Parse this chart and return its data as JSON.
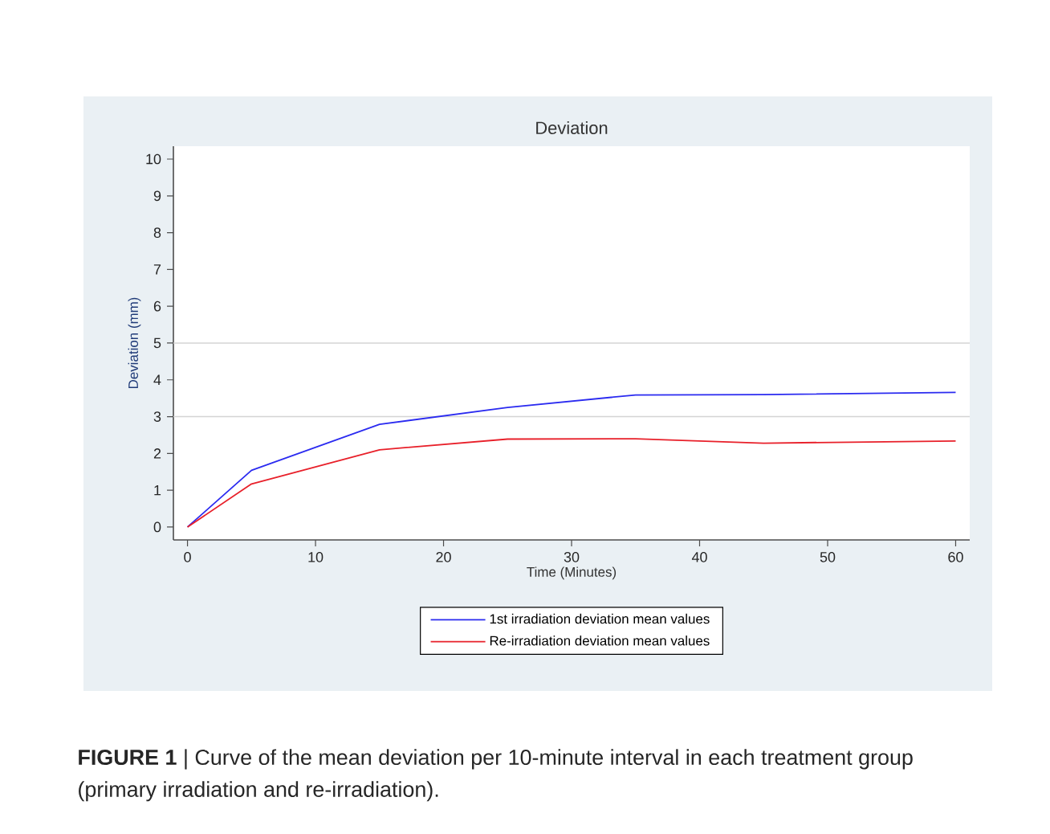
{
  "chart_data": {
    "type": "line",
    "title": "Deviation",
    "xlabel": "Time (Minutes)",
    "ylabel": "Deviation (mm)",
    "x": [
      0,
      5,
      15,
      25,
      35,
      45,
      60
    ],
    "series": [
      {
        "name": "1st irradiation deviation mean values",
        "color": "#2b2bf0",
        "values": [
          0,
          1.54,
          2.79,
          3.25,
          3.59,
          3.6,
          3.66
        ]
      },
      {
        "name": "Re-irradiation deviation mean values",
        "color": "#e8202a",
        "values": [
          0,
          1.17,
          2.1,
          2.39,
          2.4,
          2.28,
          2.34
        ]
      }
    ],
    "xlim": [
      -1.1,
      61.1
    ],
    "ylim": [
      -0.35,
      10.35
    ],
    "xticks": [
      0,
      10,
      20,
      30,
      40,
      50,
      60
    ],
    "yticks": [
      0,
      1,
      2,
      3,
      4,
      5,
      6,
      7,
      8,
      9,
      10
    ],
    "ref_lines": [
      {
        "axis": "y",
        "value": 3,
        "color": "#d4d4d4"
      },
      {
        "axis": "y",
        "value": 5,
        "color": "#d4d4d4"
      }
    ],
    "legend": "bottom",
    "line_style": "solid",
    "annotations": [
      "**FIGURE 1** | Curve of the mean deviation per 10-minute interval in each treatment group (primary irradiation and re-irradiation)."
    ]
  }
}
